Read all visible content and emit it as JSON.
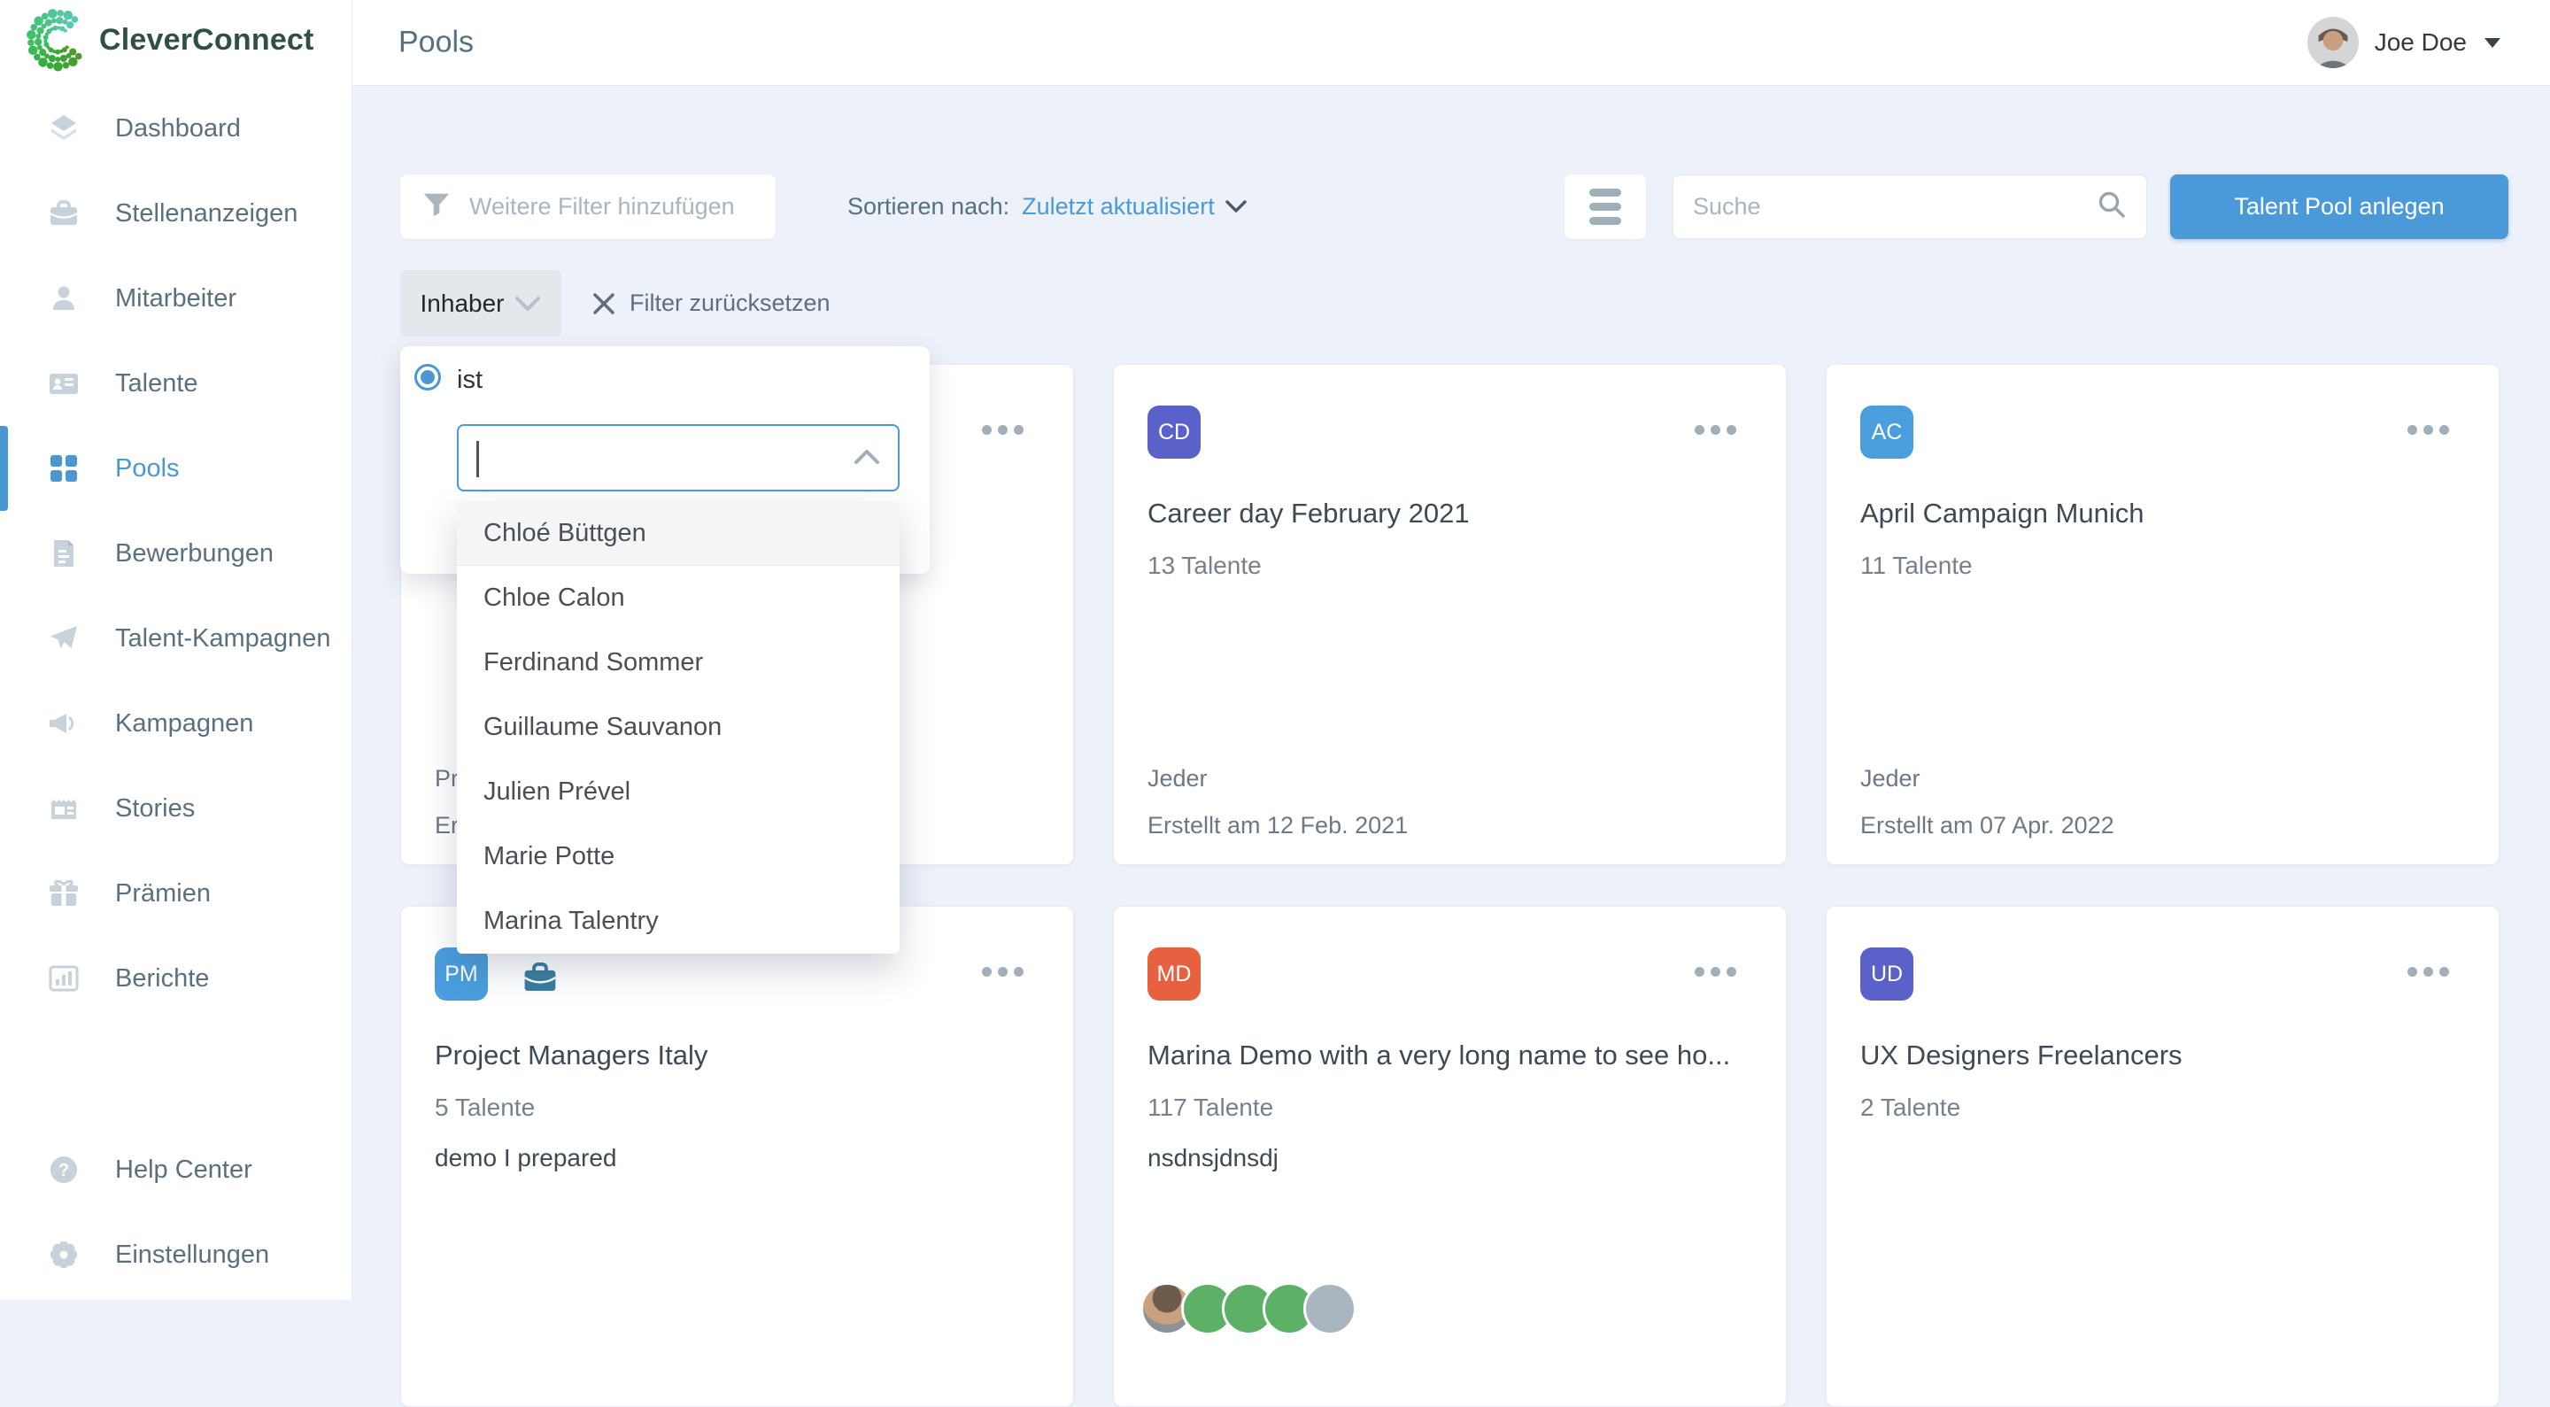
{
  "brand": {
    "name": "CleverConnect"
  },
  "sidebar": {
    "items": [
      {
        "label": "Dashboard",
        "icon": "layers-icon",
        "active": false
      },
      {
        "label": "Stellenanzeigen",
        "icon": "briefcase-icon",
        "active": false
      },
      {
        "label": "Mitarbeiter",
        "icon": "person-icon",
        "active": false
      },
      {
        "label": "Talente",
        "icon": "id-card-icon",
        "active": false
      },
      {
        "label": "Pools",
        "icon": "grid-icon",
        "active": true
      },
      {
        "label": "Bewerbungen",
        "icon": "file-text-icon",
        "active": false
      },
      {
        "label": "Talent-Kampagnen",
        "icon": "paper-plane-icon",
        "active": false
      },
      {
        "label": "Kampagnen",
        "icon": "megaphone-icon",
        "active": false
      },
      {
        "label": "Stories",
        "icon": "newspaper-icon",
        "active": false
      },
      {
        "label": "Prämien",
        "icon": "gift-icon",
        "active": false
      },
      {
        "label": "Berichte",
        "icon": "bar-chart-icon",
        "active": false
      }
    ],
    "footer_items": [
      {
        "label": "Help Center",
        "icon": "question-icon"
      },
      {
        "label": "Einstellungen",
        "icon": "gear-icon"
      }
    ]
  },
  "header": {
    "title": "Pools",
    "user": {
      "name": "Joe Doe"
    }
  },
  "toolbar": {
    "filter_placeholder": "Weitere Filter hinzufügen",
    "sort_label": "Sortieren nach:",
    "sort_value": "Zuletzt aktualisiert",
    "search_placeholder": "Suche",
    "create_button": "Talent Pool anlegen"
  },
  "filter": {
    "chip_label": "Inhaber",
    "reset_label": "Filter zurücksetzen",
    "operator_label": "ist",
    "input_value": "",
    "options": [
      "Chloé Büttgen",
      "Chloe Calon",
      "Ferdinand Sommer",
      "Guillaume Sauvanon",
      "Julien Prével",
      "Marie Potte",
      "Marina Talentry"
    ],
    "highlighted_option": "Chloé Büttgen"
  },
  "pools": {
    "cards": [
      {
        "partial": true,
        "footer_line1": "Pri",
        "footer_line2": "Ers"
      },
      {
        "initials": "CD",
        "color": "#5a61c9",
        "title": "Career day February 2021",
        "talents": "13 Talente",
        "visibility": "Jeder",
        "created": "Erstellt am 12 Feb. 2021"
      },
      {
        "initials": "AC",
        "color": "#4a9edd",
        "title": "April Campaign Munich",
        "talents": "11 Talente",
        "visibility": "Jeder",
        "created": "Erstellt am 07 Apr. 2022"
      },
      {
        "initials": "PM",
        "color": "#4a9edd",
        "title": "Project Managers Italy",
        "talents": "5 Talente",
        "description": "demo I prepared",
        "has_briefcase": true
      },
      {
        "initials": "MD",
        "color": "#e7603f",
        "title": "Marina Demo with a very long name to see ho...",
        "talents": "117 Talente",
        "description": "nsdnsjdnsdj",
        "member_avatars": {
          "photo": 1,
          "green": 3,
          "gray": 1
        }
      },
      {
        "initials": "UD",
        "color": "#5a61c9",
        "title": "UX Designers Freelancers",
        "talents": "2 Talente"
      }
    ]
  },
  "colors": {
    "accent_blue": "#4a97d2",
    "button_blue": "#4a9ad9",
    "avatar_indigo": "#5a61c9",
    "avatar_blue": "#4a9edd",
    "avatar_orange": "#e7603f",
    "member_green": "#5cb167",
    "member_gray": "#a9b6bf",
    "background": "#edf1f9",
    "logo_green_dark": "#2f5046"
  }
}
